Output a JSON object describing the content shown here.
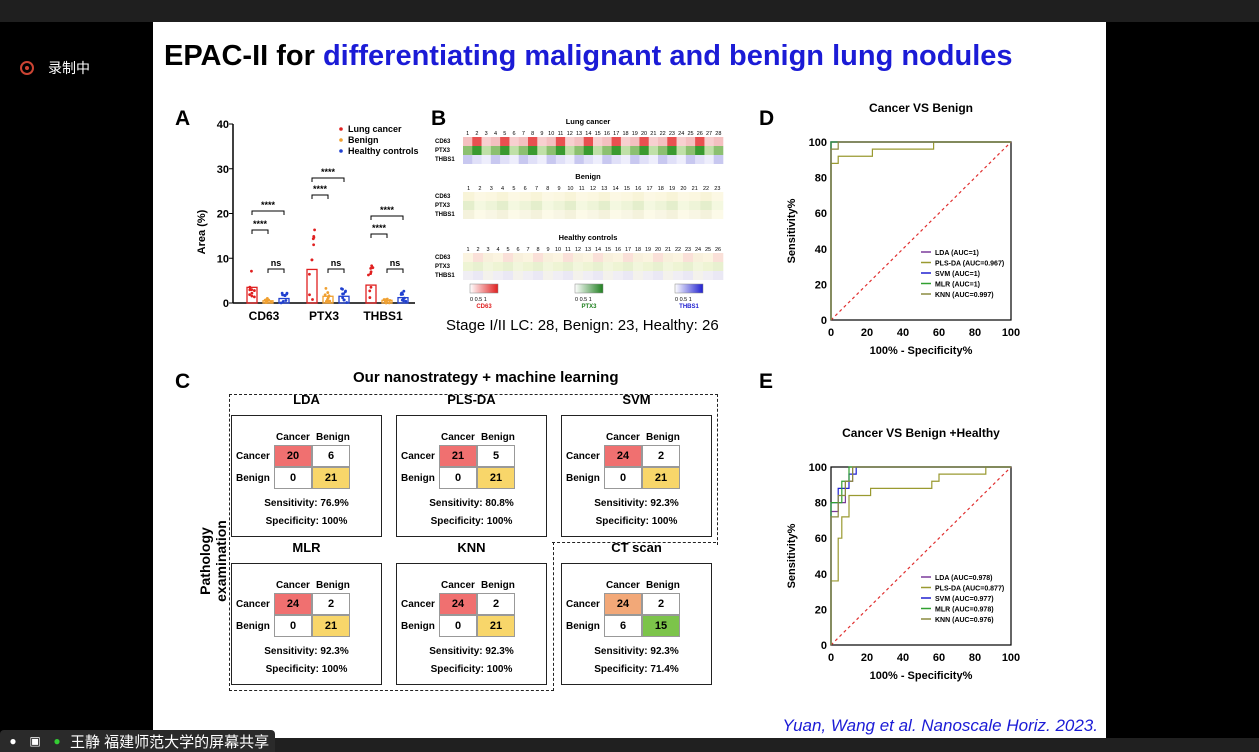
{
  "recording": {
    "label": "录制中"
  },
  "share": {
    "label": "王静 福建师范大学的屏幕共享"
  },
  "slide": {
    "title_plain": "EPAC-II for ",
    "title_highlight": "differentiating malignant and benign lung nodules",
    "citation": "Yuan, Wang et al. Nanoscale Horiz. 2023.",
    "panel_labels": {
      "a": "A",
      "b": "B",
      "c": "C",
      "d": "D",
      "e": "E"
    },
    "caption_b": "Stage I/II LC: 28, Benign: 23, Healthy: 26"
  },
  "panel_a": {
    "ylabel": "Area (%)",
    "yticks": [
      "40",
      "30",
      "20",
      "10",
      "0"
    ],
    "legend": [
      "Lung cancer",
      "Benign",
      "Healthy controls"
    ],
    "groups": [
      "CD63",
      "PTX3",
      "THBS1"
    ],
    "sig_stars": "****",
    "sig_ns": "ns"
  },
  "panel_b": {
    "titles": [
      "Lung cancer",
      "Benign",
      "Healthy controls"
    ],
    "rows": [
      "CD63",
      "PTX3",
      "THBS1"
    ],
    "scale_labels": [
      "CD63",
      "PTX3",
      "THBS1"
    ],
    "scale_ticks": "0  0.5  1",
    "cols_lc": "1 2 3 4 5 6 7 8 9 10 11 12 13 14 15 16 17 18 19 20 21 22 23 24 25 26 27 28",
    "cols_b": "1 2 3 4 5 6 7 8 9 10 11 12 13 14 15 16 17 18 19 20 21 22 23",
    "cols_h": "1 2 3 4 5 6 7 8 9 10 11 12 13 14 15 16 17 18 19 20 21 22 23 24 25 26"
  },
  "panel_c": {
    "header": "Our nanostrategy + machine learning",
    "side_label": "Pathology examination",
    "col_headers": [
      "Cancer",
      "Benign"
    ],
    "row_headers": [
      "Cancer",
      "Benign"
    ],
    "models": [
      {
        "name": "LDA",
        "tp": "20",
        "fn": "6",
        "fp": "0",
        "tn": "21",
        "sens": "Sensitivity: 76.9%",
        "spec": "Specificity: 100%"
      },
      {
        "name": "PLS-DA",
        "tp": "21",
        "fn": "5",
        "fp": "0",
        "tn": "21",
        "sens": "Sensitivity: 80.8%",
        "spec": "Specificity: 100%"
      },
      {
        "name": "SVM",
        "tp": "24",
        "fn": "2",
        "fp": "0",
        "tn": "21",
        "sens": "Sensitivity: 92.3%",
        "spec": "Specificity: 100%"
      },
      {
        "name": "MLR",
        "tp": "24",
        "fn": "2",
        "fp": "0",
        "tn": "21",
        "sens": "Sensitivity: 92.3%",
        "spec": "Specificity: 100%"
      },
      {
        "name": "KNN",
        "tp": "24",
        "fn": "2",
        "fp": "0",
        "tn": "21",
        "sens": "Sensitivity: 92.3%",
        "spec": "Specificity: 100%"
      },
      {
        "name": "CT scan",
        "tp": "24",
        "fn": "2",
        "fp": "6",
        "tn": "15",
        "sens": "Sensitivity: 92.3%",
        "spec": "Specificity: 71.4%"
      }
    ]
  },
  "panel_d": {
    "title": "Cancer VS Benign",
    "xlabel": "100% - Specificity%",
    "ylabel": "Sensitivity%",
    "ticks": [
      "0",
      "20",
      "40",
      "60",
      "80",
      "100"
    ],
    "legend": [
      "LDA (AUC=1)",
      "PLS-DA (AUC=0.967)",
      "SVM (AUC=1)",
      "MLR (AUC=1)",
      "KNN (AUC=0.997)"
    ]
  },
  "panel_e": {
    "title": "Cancer VS Benign +Healthy",
    "xlabel": "100% - Specificity%",
    "ylabel": "Sensitivity%",
    "ticks": [
      "0",
      "20",
      "40",
      "60",
      "80",
      "100"
    ],
    "legend": [
      "LDA (AUC=0.978)",
      "PLS-DA (AUC=0.877)",
      "SVM (AUC=0.977)",
      "MLR (AUC=0.978)",
      "KNN (AUC=0.976)"
    ]
  },
  "colors": {
    "highlight": "#1b1bd6",
    "tp": "#f07070",
    "tn": "#f8d66a",
    "ct_tp": "#f2a878",
    "ct_tn": "#7cc44a"
  }
}
